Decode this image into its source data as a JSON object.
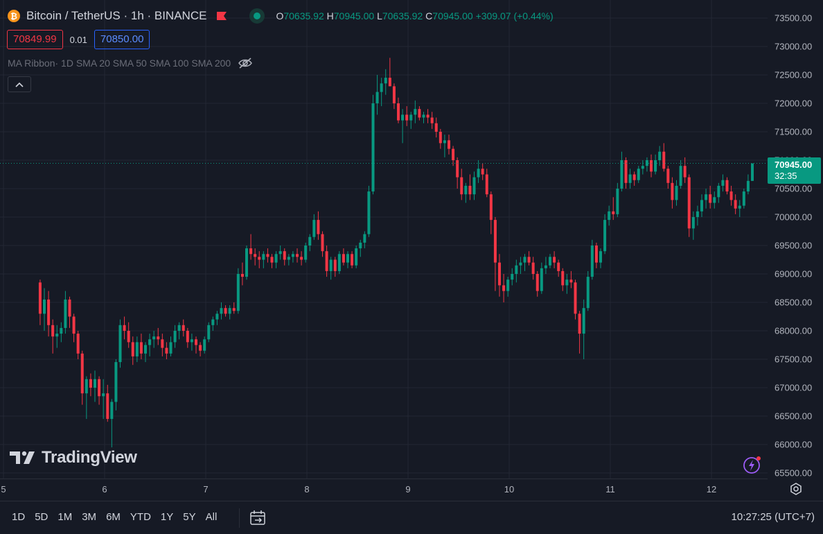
{
  "legend": {
    "symbol_icon": "bitcoin-icon",
    "title": "Bitcoin / TetherUS · 1h · BINANCE",
    "ohlc": {
      "o_label": "O",
      "o": "70635.92",
      "h_label": "H",
      "h": "70945.00",
      "l_label": "L",
      "l": "70635.92",
      "c_label": "C",
      "c": "70945.00",
      "change": "+309.07 (+0.44%)"
    }
  },
  "trade": {
    "sell": "70849.99",
    "spread": "0.01",
    "buy": "70850.00"
  },
  "indicator": {
    "name": "MA Ribbon",
    "params": " · 1D SMA 20 SMA 50 SMA 100 SMA 200",
    "hidden_icon": "eye-off-icon"
  },
  "price_axis": {
    "labels": [
      "73500.00",
      "73000.00",
      "72500.00",
      "72000.00",
      "71500.00",
      "71000.00",
      "70500.00",
      "70000.00",
      "69500.00",
      "69000.00",
      "68500.00",
      "68000.00",
      "67500.00",
      "67000.00",
      "66500.00",
      "66000.00",
      "65500.00"
    ],
    "last_price": "70945.00",
    "countdown": "32:35"
  },
  "time_axis": {
    "labels": [
      "5",
      "6",
      "7",
      "8",
      "9",
      "10",
      "11",
      "12"
    ]
  },
  "bottom_bar": {
    "ranges": [
      "1D",
      "5D",
      "1M",
      "3M",
      "6M",
      "YTD",
      "1Y",
      "5Y",
      "All"
    ],
    "clock": "10:27:25 (UTC+7)"
  },
  "watermark": "TradingView",
  "colors": {
    "up": "#089981",
    "down": "#f23645",
    "background": "#161a25",
    "grid": "#232733"
  },
  "chart_data": {
    "type": "candlestick",
    "title": "Bitcoin / TetherUS · 1h · BINANCE",
    "x_labels": [
      "5",
      "6",
      "7",
      "8",
      "9",
      "10",
      "11",
      "12"
    ],
    "ylim": [
      65500,
      73500
    ],
    "grid": true,
    "last_price": 70945.0,
    "candles": [
      [
        68850,
        68900,
        68100,
        68300
      ],
      [
        68300,
        68750,
        68000,
        68550
      ],
      [
        68550,
        68700,
        67900,
        68100
      ],
      [
        68100,
        68200,
        67600,
        67900
      ],
      [
        67900,
        68100,
        67700,
        67950
      ],
      [
        67950,
        68150,
        67800,
        68050
      ],
      [
        68050,
        68700,
        67950,
        68550
      ],
      [
        68550,
        68600,
        68050,
        68250
      ],
      [
        68250,
        68300,
        67800,
        67950
      ],
      [
        67950,
        68000,
        67500,
        67600
      ],
      [
        67600,
        67650,
        66700,
        66900
      ],
      [
        66900,
        67200,
        66450,
        67150
      ],
      [
        67150,
        67250,
        66850,
        67000
      ],
      [
        67000,
        67300,
        66750,
        67150
      ],
      [
        67150,
        67200,
        66700,
        66850
      ],
      [
        66850,
        67150,
        66450,
        66900
      ],
      [
        66900,
        67050,
        66400,
        66450
      ],
      [
        66450,
        66800,
        65950,
        66750
      ],
      [
        66750,
        67500,
        66600,
        67450
      ],
      [
        67450,
        68200,
        67350,
        68100
      ],
      [
        68100,
        68250,
        67850,
        68000
      ],
      [
        68000,
        68150,
        67700,
        67800
      ],
      [
        67800,
        67900,
        67400,
        67550
      ],
      [
        67550,
        67900,
        67450,
        67800
      ],
      [
        67800,
        67950,
        67500,
        67600
      ],
      [
        67600,
        67800,
        67450,
        67750
      ],
      [
        67750,
        67950,
        67550,
        67850
      ],
      [
        67850,
        68000,
        67700,
        67900
      ],
      [
        67900,
        68050,
        67750,
        67850
      ],
      [
        67850,
        67950,
        67550,
        67700
      ],
      [
        67700,
        67800,
        67500,
        67600
      ],
      [
        67600,
        67900,
        67550,
        67800
      ],
      [
        67800,
        68100,
        67700,
        68000
      ],
      [
        68000,
        68150,
        67850,
        68100
      ],
      [
        68100,
        68200,
        67900,
        68000
      ],
      [
        68000,
        68050,
        67700,
        67800
      ],
      [
        67800,
        67950,
        67650,
        67850
      ],
      [
        67850,
        67900,
        67600,
        67750
      ],
      [
        67750,
        67800,
        67550,
        67650
      ],
      [
        67650,
        67900,
        67600,
        67850
      ],
      [
        67850,
        68150,
        67800,
        68100
      ],
      [
        68100,
        68250,
        68000,
        68200
      ],
      [
        68200,
        68350,
        68100,
        68300
      ],
      [
        68300,
        68500,
        68200,
        68400
      ],
      [
        68400,
        68450,
        68250,
        68300
      ],
      [
        68300,
        68450,
        68200,
        68400
      ],
      [
        68400,
        68500,
        68300,
        68350
      ],
      [
        68350,
        69100,
        68300,
        69000
      ],
      [
        69000,
        69200,
        68800,
        68950
      ],
      [
        68950,
        69500,
        68900,
        69450
      ],
      [
        69450,
        69700,
        69250,
        69350
      ],
      [
        69350,
        69450,
        69150,
        69300
      ],
      [
        69300,
        69400,
        69100,
        69250
      ],
      [
        69250,
        69400,
        69100,
        69350
      ],
      [
        69350,
        69450,
        69200,
        69300
      ],
      [
        69300,
        69350,
        69100,
        69200
      ],
      [
        69200,
        69400,
        69100,
        69350
      ],
      [
        69350,
        69500,
        69250,
        69400
      ],
      [
        69400,
        69450,
        69150,
        69250
      ],
      [
        69250,
        69350,
        69150,
        69300
      ],
      [
        69300,
        69400,
        69200,
        69350
      ],
      [
        69350,
        69450,
        69200,
        69300
      ],
      [
        69300,
        69400,
        69150,
        69250
      ],
      [
        69250,
        69550,
        69200,
        69500
      ],
      [
        69500,
        69700,
        69400,
        69650
      ],
      [
        69650,
        70050,
        69600,
        69950
      ],
      [
        69950,
        70100,
        69600,
        69700
      ],
      [
        69700,
        69750,
        69300,
        69400
      ],
      [
        69400,
        69500,
        68950,
        69050
      ],
      [
        69050,
        69300,
        68900,
        69250
      ],
      [
        69250,
        69300,
        68950,
        69050
      ],
      [
        69050,
        69400,
        69000,
        69350
      ],
      [
        69350,
        69450,
        69150,
        69200
      ],
      [
        69200,
        69400,
        69100,
        69350
      ],
      [
        69350,
        69400,
        69100,
        69150
      ],
      [
        69150,
        69500,
        69100,
        69450
      ],
      [
        69450,
        69600,
        69300,
        69550
      ],
      [
        69550,
        69750,
        69450,
        69700
      ],
      [
        69700,
        70550,
        69650,
        70450
      ],
      [
        70450,
        72150,
        70400,
        72000
      ],
      [
        72000,
        72500,
        71800,
        72200
      ],
      [
        72200,
        72450,
        71950,
        72350
      ],
      [
        72350,
        72600,
        72150,
        72450
      ],
      [
        72450,
        72800,
        72300,
        72300
      ],
      [
        72300,
        72350,
        71900,
        72000
      ],
      [
        72000,
        72100,
        71650,
        71700
      ],
      [
        71700,
        71900,
        71300,
        71800
      ],
      [
        71800,
        71950,
        71600,
        71700
      ],
      [
        71700,
        71850,
        71550,
        71800
      ],
      [
        71800,
        72050,
        71650,
        71900
      ],
      [
        71900,
        71950,
        71700,
        71750
      ],
      [
        71750,
        71850,
        71650,
        71800
      ],
      [
        71800,
        71900,
        71650,
        71750
      ],
      [
        71750,
        71850,
        71550,
        71650
      ],
      [
        71650,
        71750,
        71400,
        71500
      ],
      [
        71500,
        71550,
        71200,
        71300
      ],
      [
        71300,
        71450,
        71050,
        71350
      ],
      [
        71350,
        71450,
        71100,
        71200
      ],
      [
        71200,
        71250,
        70900,
        71000
      ],
      [
        71000,
        71050,
        70500,
        70700
      ],
      [
        70700,
        70850,
        70300,
        70400
      ],
      [
        70400,
        70600,
        70250,
        70550
      ],
      [
        70550,
        70750,
        70300,
        70400
      ],
      [
        70400,
        70800,
        70300,
        70700
      ],
      [
        70700,
        71000,
        70600,
        70850
      ],
      [
        70850,
        70950,
        70650,
        70750
      ],
      [
        70750,
        70850,
        70350,
        70400
      ],
      [
        70400,
        70450,
        69700,
        69950
      ],
      [
        69950,
        70000,
        68700,
        69200
      ],
      [
        69200,
        69350,
        68600,
        68800
      ],
      [
        68800,
        69000,
        68500,
        68700
      ],
      [
        68700,
        68950,
        68600,
        68900
      ],
      [
        68900,
        69100,
        68800,
        69000
      ],
      [
        69000,
        69250,
        68850,
        69150
      ],
      [
        69150,
        69300,
        69000,
        69200
      ],
      [
        69200,
        69350,
        69050,
        69300
      ],
      [
        69300,
        69400,
        69150,
        69200
      ],
      [
        69200,
        69300,
        68900,
        69000
      ],
      [
        69000,
        69050,
        68600,
        68700
      ],
      [
        68700,
        69200,
        68650,
        69100
      ],
      [
        69100,
        69300,
        69000,
        69150
      ],
      [
        69150,
        69350,
        69100,
        69300
      ],
      [
        69300,
        69400,
        69100,
        69200
      ],
      [
        69200,
        69250,
        68950,
        69050
      ],
      [
        69050,
        69100,
        68700,
        68800
      ],
      [
        68800,
        69000,
        68650,
        68900
      ],
      [
        68900,
        69050,
        68750,
        68850
      ],
      [
        68850,
        68900,
        68200,
        68300
      ],
      [
        68300,
        68350,
        67600,
        67950
      ],
      [
        67950,
        68550,
        67500,
        68400
      ],
      [
        68400,
        69050,
        68350,
        68950
      ],
      [
        68950,
        69600,
        68900,
        69500
      ],
      [
        69500,
        69550,
        69100,
        69200
      ],
      [
        69200,
        69450,
        69100,
        69400
      ],
      [
        69400,
        70050,
        69350,
        69950
      ],
      [
        69950,
        70200,
        69850,
        70100
      ],
      [
        70100,
        70350,
        69950,
        70050
      ],
      [
        70050,
        70600,
        70000,
        70500
      ],
      [
        70500,
        71150,
        70450,
        71000
      ],
      [
        71000,
        71050,
        70500,
        70600
      ],
      [
        70600,
        70850,
        70500,
        70750
      ],
      [
        70750,
        70800,
        70550,
        70650
      ],
      [
        70650,
        70900,
        70600,
        70850
      ],
      [
        70850,
        71000,
        70750,
        70900
      ],
      [
        70900,
        71050,
        70800,
        71000
      ],
      [
        71000,
        71100,
        70700,
        70800
      ],
      [
        70800,
        71100,
        70750,
        71000
      ],
      [
        71000,
        71250,
        70900,
        71150
      ],
      [
        71150,
        71300,
        70800,
        70850
      ],
      [
        70850,
        70900,
        70500,
        70600
      ],
      [
        70600,
        70700,
        70150,
        70300
      ],
      [
        70300,
        70650,
        70200,
        70550
      ],
      [
        70550,
        71000,
        70500,
        70900
      ],
      [
        70900,
        71050,
        70600,
        70700
      ],
      [
        70700,
        70750,
        69650,
        69800
      ],
      [
        69800,
        70100,
        69600,
        70000
      ],
      [
        70000,
        70200,
        69850,
        70100
      ],
      [
        70100,
        70400,
        70000,
        70300
      ],
      [
        70300,
        70500,
        70150,
        70400
      ],
      [
        70400,
        70550,
        70150,
        70250
      ],
      [
        70250,
        70450,
        70150,
        70350
      ],
      [
        70350,
        70600,
        70250,
        70550
      ],
      [
        70550,
        70750,
        70450,
        70650
      ],
      [
        70650,
        70700,
        70400,
        70450
      ],
      [
        70450,
        70550,
        70200,
        70300
      ],
      [
        70300,
        70400,
        70050,
        70150
      ],
      [
        70150,
        70300,
        70000,
        70200
      ],
      [
        70200,
        70500,
        70150,
        70450
      ],
      [
        70450,
        70750,
        70400,
        70636
      ],
      [
        70636,
        70945,
        70636,
        70945
      ]
    ]
  }
}
